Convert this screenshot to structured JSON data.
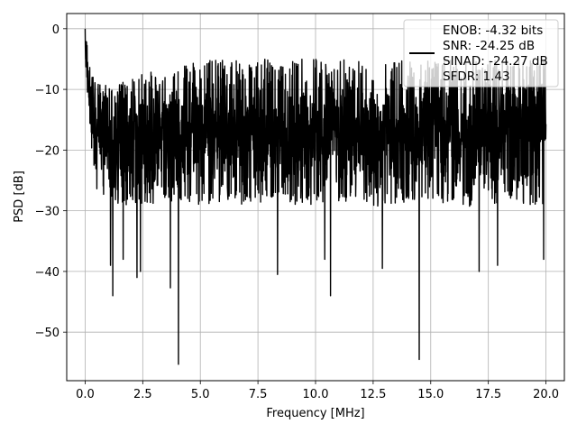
{
  "chart_data": {
    "type": "line",
    "title": "",
    "xlabel": "Frequency [MHz]",
    "ylabel": "PSD [dB]",
    "xlim": [
      -0.8,
      20.8
    ],
    "ylim": [
      -58,
      2.5
    ],
    "xticks": [
      0.0,
      2.5,
      5.0,
      7.5,
      10.0,
      12.5,
      15.0,
      17.5,
      20.0
    ],
    "xtick_labels": [
      "0.0",
      "2.5",
      "5.0",
      "7.5",
      "10.0",
      "12.5",
      "15.0",
      "17.5",
      "20.0"
    ],
    "yticks": [
      0,
      -10,
      -20,
      -30,
      -40,
      -50
    ],
    "ytick_labels": [
      "0",
      "−10",
      "−20",
      "−30",
      "−40",
      "−50"
    ],
    "grid": true,
    "legend_position": "top-right",
    "legend_lines": [
      "ENOB: -4.32 bits",
      "SNR: -24.25 dB",
      "SINAD: -24.27 dB",
      "SFDR: 1.43"
    ],
    "series": [
      {
        "color": "#000000",
        "envelope": {
          "x": [
            0.0,
            0.3,
            0.5,
            1.0,
            2.0,
            3.0,
            4.0,
            5.0,
            7.5,
            10.0,
            12.5,
            15.0,
            17.5,
            20.0
          ],
          "upper": [
            0.0,
            -8.0,
            -9.0,
            -9.0,
            -8.0,
            -6.5,
            -6.0,
            -5.0,
            -5.0,
            -5.0,
            -5.0,
            -5.0,
            -5.0,
            -5.0
          ],
          "lower": [
            -8.0,
            -21.0,
            -26.0,
            -29.0,
            -29.0,
            -29.0,
            -29.0,
            -29.0,
            -29.0,
            -29.0,
            -29.0,
            -29.0,
            -29.0,
            -29.0
          ]
        },
        "peaks": [
          {
            "x": 0.0,
            "y": 0.0
          },
          {
            "x": 0.02,
            "y": -5.0
          },
          {
            "x": 1.1,
            "y": -39.0
          },
          {
            "x": 1.2,
            "y": -44.0
          },
          {
            "x": 1.65,
            "y": -38.0
          },
          {
            "x": 2.25,
            "y": -41.0
          },
          {
            "x": 2.4,
            "y": -40.0
          },
          {
            "x": 3.7,
            "y": -42.7
          },
          {
            "x": 4.05,
            "y": -55.3
          },
          {
            "x": 8.35,
            "y": -40.5
          },
          {
            "x": 10.4,
            "y": -38.0
          },
          {
            "x": 10.65,
            "y": -44.0
          },
          {
            "x": 12.9,
            "y": -39.5
          },
          {
            "x": 14.5,
            "y": -54.5
          },
          {
            "x": 17.1,
            "y": -40.0
          },
          {
            "x": 17.9,
            "y": -39.0
          },
          {
            "x": 19.9,
            "y": -38.0
          }
        ]
      }
    ]
  }
}
